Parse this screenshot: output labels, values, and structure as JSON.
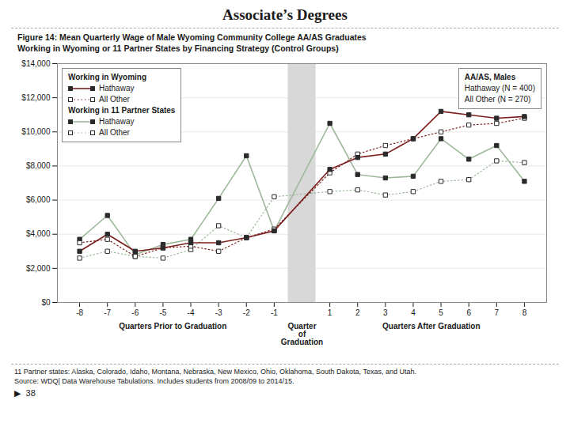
{
  "chart_data": {
    "type": "line",
    "title": "Associate’s Degrees",
    "subtitle": "Figure 14: Mean Quarterly Wage of Male Wyoming Community College AA/AS Graduates\nWorking in Wyoming or 11 Partner States by Financing Strategy (Control Groups)",
    "x": [
      -8,
      -7,
      -6,
      -5,
      -4,
      -3,
      -2,
      -1,
      1,
      2,
      3,
      4,
      5,
      6,
      7,
      8
    ],
    "xlim": [
      -8.8,
      8.8
    ],
    "xticks": [
      -8,
      -7,
      -6,
      -5,
      -4,
      -3,
      -2,
      -1,
      1,
      2,
      3,
      4,
      5,
      6,
      7,
      8
    ],
    "ylim": [
      0,
      14000
    ],
    "yticks": [
      {
        "value": 0,
        "label": "$0"
      },
      {
        "value": 2000,
        "label": "$2,000"
      },
      {
        "value": 4000,
        "label": "$4,000"
      },
      {
        "value": 6000,
        "label": "$6,000"
      },
      {
        "value": 8000,
        "label": "$8,000"
      },
      {
        "value": 10000,
        "label": "$10,000"
      },
      {
        "value": 12000,
        "label": "$12,000"
      },
      {
        "value": 14000,
        "label": "$14,000"
      }
    ],
    "grid": "y",
    "legend": "upper left",
    "legend_titles": [
      "Working in Wyoming",
      "Working in 11 Partner States"
    ],
    "series": [
      {
        "name": "Hathaway",
        "color": "#7b1e1e",
        "line_style": "solid",
        "marker": "square",
        "values": [
          3000,
          4000,
          3000,
          3200,
          3500,
          3500,
          3800,
          4200,
          7800,
          8500,
          8700,
          9600,
          11200,
          11000,
          10800,
          10900
        ]
      },
      {
        "name": "All Other",
        "color": "#7b1e1e",
        "line_style": "dotted",
        "marker": "square-open",
        "values": [
          3500,
          3700,
          2700,
          3200,
          3300,
          3000,
          3800,
          4300,
          7600,
          8700,
          9200,
          9600,
          10000,
          10400,
          10500,
          10800
        ]
      },
      {
        "name": "Hathaway",
        "color": "#9db89a",
        "line_style": "solid",
        "marker": "square",
        "values": [
          3700,
          5100,
          2800,
          3400,
          3700,
          6100,
          8600,
          4200,
          10500,
          7500,
          7300,
          7400,
          9600,
          8400,
          9200,
          7100
        ]
      },
      {
        "name": "All Other",
        "color": "#9db89a",
        "line_style": "dotted",
        "marker": "square-open",
        "values": [
          2600,
          3000,
          2700,
          2600,
          3100,
          4500,
          3800,
          6200,
          6500,
          6600,
          6300,
          6500,
          7100,
          7200,
          8300,
          8200
        ]
      }
    ],
    "highlight": {
      "xlim": [
        -0.5,
        0.5
      ],
      "color": "#d8d8d8"
    },
    "x_section_labels": [
      "Quarters Prior to Graduation",
      "Quarter\nof\nGraduation",
      "Quarters After Graduation"
    ],
    "inset": {
      "title": "AA/AS, Males",
      "lines": [
        "Hathaway (N = 400)",
        "All Other (N = 270)"
      ]
    },
    "footnotes": [
      "11 Partner states: Alaska, Colorado, Idaho, Montana, Nebraska, New Mexico, Ohio, Oklahoma, South Dakota, Texas, and Utah.",
      "Source: WDQ| Data Warehouse Tabulations. Includes students from 2008/09 to 2014/15."
    ],
    "page_number": "▶  38"
  }
}
